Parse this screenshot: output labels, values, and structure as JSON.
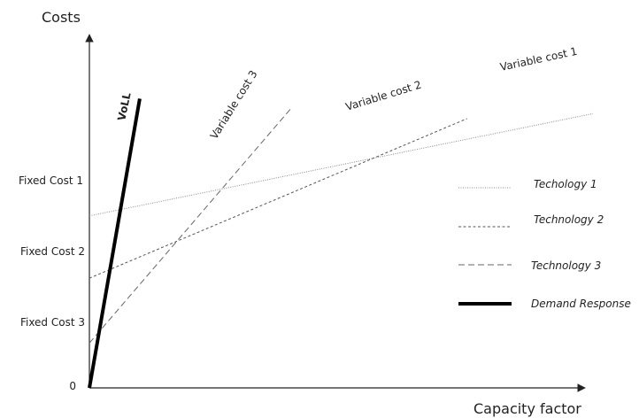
{
  "chart_data": {
    "type": "line",
    "title": "",
    "xlabel": "Capacity factor",
    "ylabel": "Costs",
    "xlim": [
      0,
      1
    ],
    "ylim": [
      0,
      1.3
    ],
    "y_ticks": [
      {
        "label": "0",
        "value": 0
      },
      {
        "label": "Fixed Cost 3",
        "value": 0.18
      },
      {
        "label": "Fixed Cost 2",
        "value": 0.44
      },
      {
        "label": "Fixed Cost 1",
        "value": 0.69
      }
    ],
    "series": [
      {
        "name": "Techology 1",
        "line_label": "Variable cost 1",
        "style": "dotted",
        "color": "#888888",
        "x": [
          0,
          1
        ],
        "y": [
          0.69,
          1.1
        ]
      },
      {
        "name": "Technology 2",
        "line_label": "Variable cost 2",
        "style": "short-dash",
        "color": "#555555",
        "x": [
          0,
          0.75
        ],
        "y": [
          0.44,
          1.08
        ]
      },
      {
        "name": "Technology 3",
        "line_label": "Variable cost 3",
        "style": "long-dash",
        "color": "#666666",
        "x": [
          0,
          0.4
        ],
        "y": [
          0.18,
          1.12
        ]
      },
      {
        "name": "Demand Response",
        "line_label": "VoLL",
        "style": "solid-thick",
        "color": "#000000",
        "x": [
          0,
          0.1
        ],
        "y": [
          0,
          1.16
        ]
      }
    ],
    "legend": {
      "position": "right"
    },
    "grid": false
  }
}
